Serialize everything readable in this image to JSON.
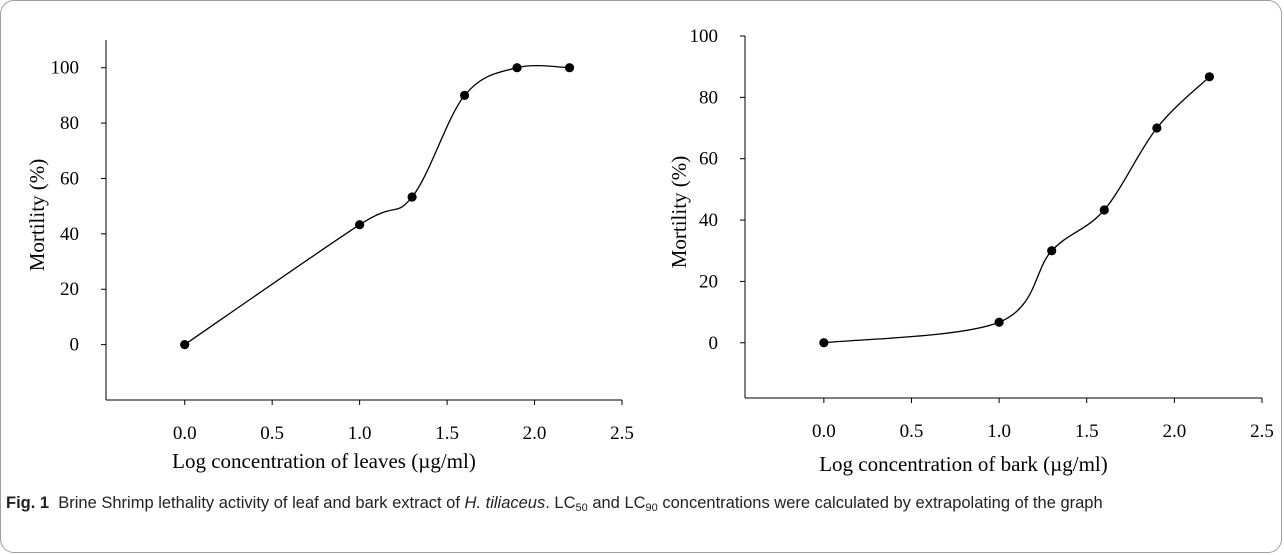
{
  "chart_data": [
    {
      "type": "line",
      "xlabel": "Log concentration of leaves (µg/ml)",
      "ylabel": "Mortility (%)",
      "xlim": [
        -0.45,
        2.5
      ],
      "ylim": [
        -20,
        110
      ],
      "xticks": [
        "0.0",
        "0.5",
        "1.0",
        "1.5",
        "2.0",
        "2.5"
      ],
      "xtick_values": [
        0,
        0.5,
        1,
        1.5,
        2,
        2.5
      ],
      "yticks": [
        "0",
        "20",
        "40",
        "60",
        "80",
        "100"
      ],
      "ytick_values": [
        0,
        20,
        40,
        60,
        80,
        100
      ],
      "smooth": true,
      "grid": false,
      "series": [
        {
          "x": [
            0,
            1,
            1.3,
            1.6,
            1.9,
            2.2
          ],
          "y": [
            0,
            43.3,
            53.3,
            90,
            100,
            100
          ]
        }
      ]
    },
    {
      "type": "line",
      "xlabel": "Log concentration of bark (µg/ml)",
      "ylabel": "Mortility (%)",
      "xlim": [
        -0.45,
        2.5
      ],
      "ylim": [
        -18,
        100
      ],
      "xticks": [
        "0.0",
        "0.5",
        "1.0",
        "1.5",
        "2.0",
        "2.5"
      ],
      "xtick_values": [
        0,
        0.5,
        1,
        1.5,
        2,
        2.5
      ],
      "yticks": [
        "0",
        "20",
        "40",
        "60",
        "80",
        "100"
      ],
      "ytick_values": [
        0,
        20,
        40,
        60,
        80,
        100
      ],
      "smooth": true,
      "grid": false,
      "series": [
        {
          "x": [
            0,
            1,
            1.3,
            1.6,
            1.9,
            2.2
          ],
          "y": [
            0,
            6.7,
            30,
            43.3,
            70,
            86.7
          ]
        }
      ]
    }
  ],
  "caption": {
    "fig_label": "Fig. 1",
    "text_1": "Brine Shrimp lethality activity of leaf and bark extract of ",
    "species": "H. tiliaceus",
    "text_2": ". LC",
    "sub_1": "50",
    "text_3": " and LC",
    "sub_2": "90",
    "text_4": " concentrations were calculated by extrapolating of the graph"
  }
}
